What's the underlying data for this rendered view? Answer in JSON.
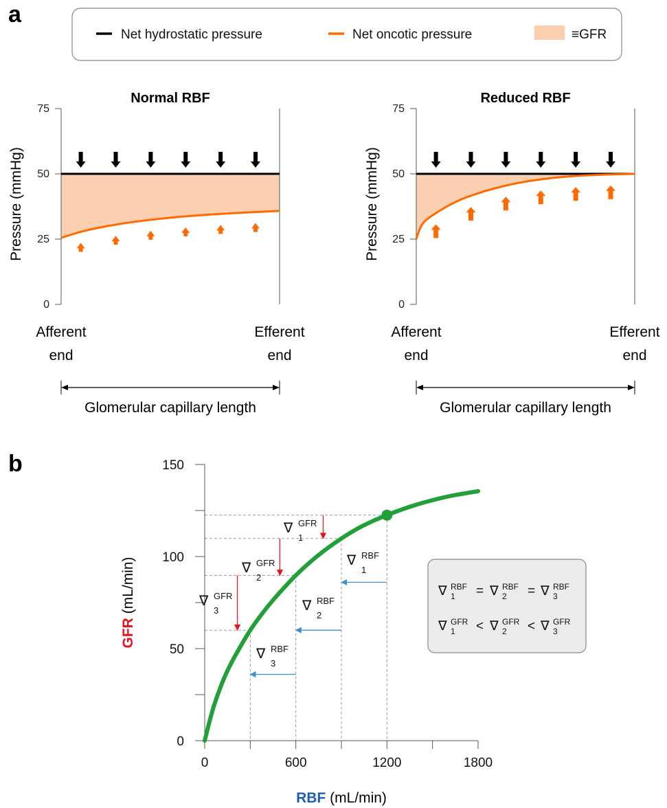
{
  "panel_labels": {
    "a": "a",
    "b": "b"
  },
  "legend": {
    "hydrostatic": "Net hydrostatic pressure",
    "oncotic": "Net oncotic pressure",
    "gfr_area": "≡GFR"
  },
  "colors": {
    "hydrostatic": "#000000",
    "oncotic": "#ff6a00",
    "fill": "#fbd0b0",
    "curve": "#21a03a",
    "gfr_arrow": "#e8121c",
    "rbf_arrow": "#3d8fd6",
    "gfr_label": "#e8121c",
    "rbf_label": "#1f5fb0"
  },
  "chart_data": [
    {
      "type": "area",
      "title": "Normal RBF",
      "ylabel": "Pressure (mmHg)",
      "ylim": [
        0,
        75
      ],
      "yticks": [
        "0",
        "25",
        "50",
        "75"
      ],
      "xlabel": "Glomerular capillary length",
      "x_start_label": [
        "Afferent",
        "end"
      ],
      "x_end_label": [
        "Efferent",
        "end"
      ],
      "x": [
        0,
        0.1,
        0.2,
        0.3,
        0.4,
        0.5,
        0.6,
        0.7,
        0.8,
        0.9,
        1.0
      ],
      "series": [
        {
          "name": "Net hydrostatic pressure",
          "values": [
            50,
            50,
            50,
            50,
            50,
            50,
            50,
            50,
            50,
            50,
            50
          ]
        },
        {
          "name": "Net oncotic pressure",
          "values": [
            25.5,
            28,
            29.8,
            31.2,
            32.3,
            33.2,
            33.9,
            34.5,
            35,
            35.4,
            35.8
          ]
        }
      ]
    },
    {
      "type": "area",
      "title": "Reduced RBF",
      "ylabel": "Pressure (mmHg)",
      "ylim": [
        0,
        75
      ],
      "yticks": [
        "0",
        "25",
        "50",
        "75"
      ],
      "xlabel": "Glomerular capillary length",
      "x_start_label": [
        "Afferent",
        "end"
      ],
      "x_end_label": [
        "Efferent",
        "end"
      ],
      "x": [
        0,
        0.03,
        0.1,
        0.2,
        0.3,
        0.4,
        0.5,
        0.6,
        0.7,
        0.8,
        0.9,
        1.0
      ],
      "series": [
        {
          "name": "Net hydrostatic pressure",
          "values": [
            50,
            50,
            50,
            50,
            50,
            50,
            50,
            50,
            50,
            50,
            50,
            50
          ]
        },
        {
          "name": "Net oncotic pressure",
          "values": [
            25,
            31,
            35.5,
            40,
            43,
            45.3,
            47,
            48.2,
            49,
            49.5,
            49.8,
            50
          ]
        }
      ]
    },
    {
      "type": "line",
      "xlabel": {
        "bold": "RBF",
        "rest": " (mL/min)"
      },
      "ylabel": {
        "bold": "GFR",
        "rest": " (mL/min)"
      },
      "xlim": [
        0,
        1800
      ],
      "ylim": [
        0,
        150
      ],
      "xticks": [
        "0",
        "600",
        "1200",
        "1800"
      ],
      "yticks": [
        "0",
        "50",
        "100",
        "150"
      ],
      "x": [
        0,
        50,
        100,
        150,
        200,
        300,
        400,
        500,
        600,
        700,
        800,
        900,
        1000,
        1100,
        1200,
        1300,
        1400,
        1500,
        1600,
        1700,
        1800
      ],
      "y": [
        0,
        16,
        28.2,
        38,
        46,
        60,
        71.3,
        81,
        89.8,
        97.4,
        104,
        109.8,
        114.9,
        119,
        122.5,
        125.6,
        128.3,
        130.6,
        132.6,
        134.1,
        135.5
      ],
      "highlight_point": {
        "x": 1200,
        "y": 122.5
      },
      "steps": [
        {
          "rbf_from": 1200,
          "rbf_to": 900,
          "gfr_from": 122.5,
          "gfr_to": 109.8
        },
        {
          "rbf_from": 900,
          "rbf_to": 600,
          "gfr_from": 109.8,
          "gfr_to": 89.8
        },
        {
          "rbf_from": 600,
          "rbf_to": 300,
          "gfr_from": 89.8,
          "gfr_to": 60
        }
      ],
      "gradient_labels": {
        "symbol": "∇",
        "gfr_sup": "GFR",
        "rbf_sup": "RBF",
        "subs": [
          "1",
          "2",
          "3"
        ]
      },
      "box": {
        "symbol": "∇",
        "rbf_sup": "RBF",
        "gfr_sup": "GFR",
        "subs": [
          "1",
          "2",
          "3"
        ],
        "eq_op": "=",
        "lt_op": "<"
      }
    }
  ]
}
